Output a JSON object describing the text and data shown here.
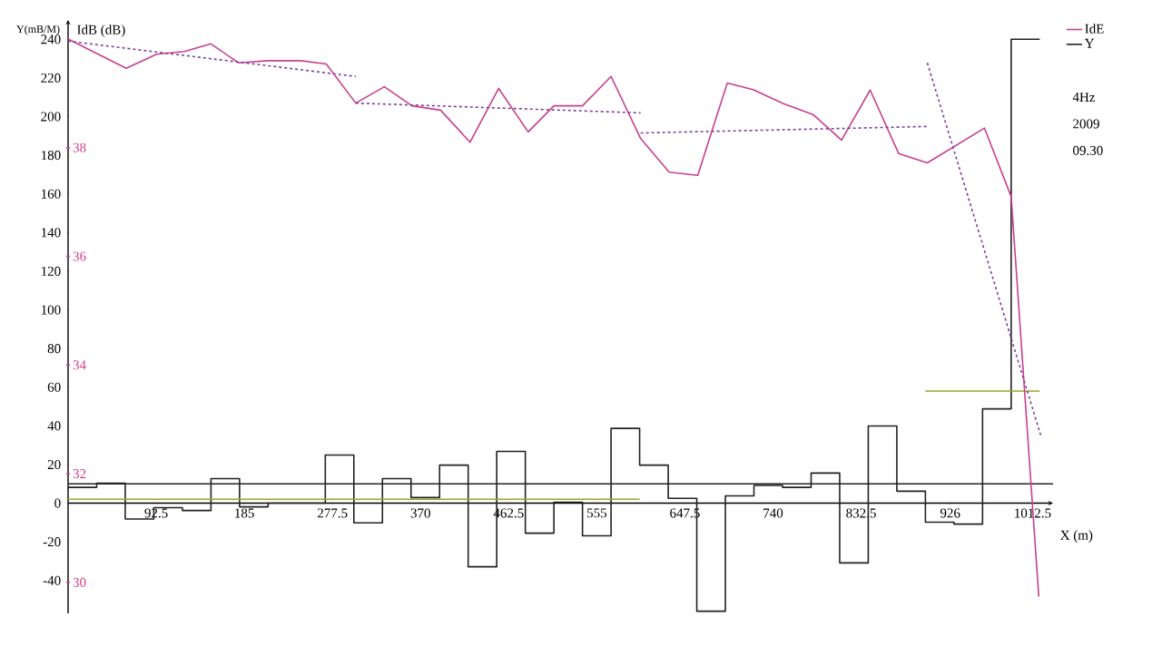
{
  "chart_data": {
    "type": "line",
    "ylabel": "Y(mB/M)",
    "y2label": "IdB (dB)",
    "xlabel": "X (m)",
    "xlim": [
      0,
      1034
    ],
    "ylim": [
      -57,
      250
    ],
    "y2lim": [
      29.43,
      40.35
    ],
    "xticks": [
      92.5,
      185,
      277.5,
      370,
      462.5,
      555,
      647.5,
      740,
      832.5,
      926,
      1012.5
    ],
    "yticks": [
      -40,
      -20,
      0,
      20,
      40,
      60,
      80,
      100,
      120,
      140,
      160,
      180,
      200,
      220,
      240
    ],
    "y2ticks": [
      30,
      32,
      34,
      36,
      38
    ],
    "grid": false,
    "marker": "none",
    "legend": "top right",
    "annotations": [
      "4Hz",
      "2009",
      "09.30"
    ],
    "ref_lines": [
      {
        "axis": "y",
        "value": 10,
        "color": "#222222"
      }
    ],
    "series": [
      {
        "type": "line",
        "name": "IdE",
        "color": "#c8408f",
        "axis": "y2",
        "x": [
          0,
          61,
          93,
          122,
          150,
          179,
          210,
          244,
          271,
          302,
          332,
          361,
          391,
          422,
          452,
          483,
          510,
          540,
          570,
          601,
          631,
          661,
          692,
          719,
          751,
          782,
          812,
          842,
          872,
          902,
          962,
          990,
          1019
        ],
        "values": [
          40.0,
          39.46,
          39.72,
          39.77,
          39.91,
          39.56,
          39.6,
          39.6,
          39.54,
          38.82,
          39.12,
          38.77,
          38.69,
          38.1,
          39.09,
          38.29,
          38.77,
          38.77,
          39.31,
          38.17,
          37.55,
          37.49,
          39.19,
          39.07,
          38.81,
          38.61,
          38.14,
          39.06,
          37.89,
          37.72,
          38.36,
          37.1,
          29.74
        ]
      },
      {
        "type": "line",
        "color": "#7b3f9e",
        "axis": "y2",
        "line_style": "dashed",
        "x": [
          0,
          302
        ],
        "values": [
          39.96,
          39.31
        ]
      },
      {
        "type": "line",
        "color": "#7b3f9e",
        "axis": "y2",
        "line_style": "dashed",
        "x": [
          302,
          601
        ],
        "values": [
          38.82,
          38.64
        ]
      },
      {
        "type": "line",
        "color": "#7b3f9e",
        "axis": "y2",
        "line_style": "dashed",
        "x": [
          601,
          902
        ],
        "values": [
          38.27,
          38.39
        ]
      },
      {
        "type": "line",
        "color": "#7b3f9e",
        "axis": "y2",
        "line_style": "dashed",
        "x": [
          902,
          1021
        ],
        "values": [
          39.56,
          32.71
        ]
      },
      {
        "type": "step",
        "name": "Y",
        "color": "#222222",
        "x": [
          0,
          30,
          60,
          90,
          120,
          150,
          180,
          210,
          240,
          270,
          300,
          330,
          360,
          390,
          420,
          450,
          480,
          510,
          540,
          570,
          600,
          630,
          660,
          690,
          720,
          750,
          780,
          810,
          840,
          870,
          900,
          930,
          960,
          990,
          1020
        ],
        "values": [
          8.2,
          10.3,
          -8.2,
          -2.3,
          -3.8,
          12.7,
          -1.9,
          0,
          0,
          24.9,
          -10.2,
          12.7,
          2.9,
          19.7,
          -32.9,
          26.8,
          -15.5,
          0.5,
          -16.9,
          38.7,
          19.7,
          2.5,
          -55.9,
          3.8,
          9.2,
          8.2,
          15.6,
          -30.9,
          39.9,
          6.2,
          -9.8,
          -10.8,
          48.8,
          240,
          240
        ]
      },
      {
        "type": "line",
        "color": "#9aa62a",
        "x": [
          0,
          600,
          750,
          900,
          1020
        ],
        "values": [
          2,
          2,
          null,
          58,
          58
        ]
      }
    ]
  }
}
